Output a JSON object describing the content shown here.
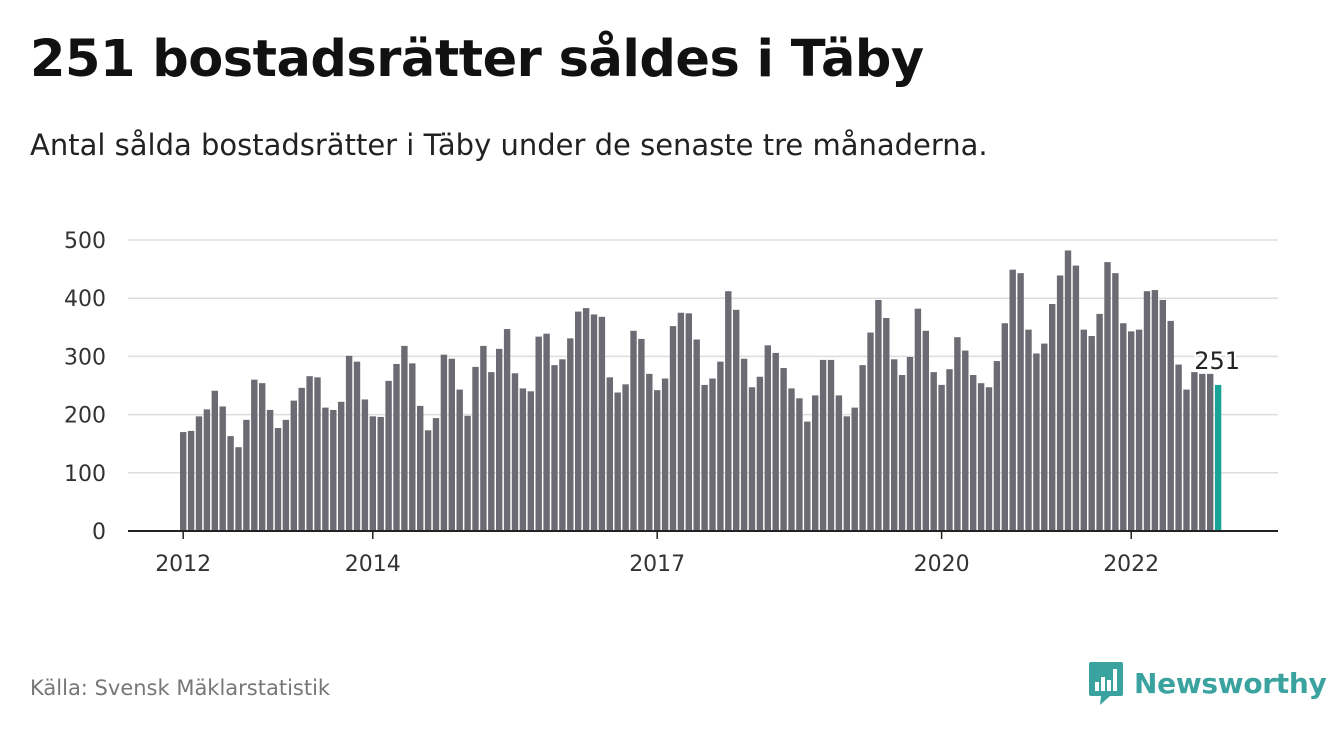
{
  "title": "251 bostadsrätter såldes i Täby",
  "subtitle": "Antal sålda bostadsrätter i Täby under de senaste tre månaderna.",
  "source": "Källa: Svensk Mäklarstatistik",
  "brand": {
    "name": "Newsworthy",
    "icon": "bar-chart-speech-bubble-icon",
    "color": "#3aa39f"
  },
  "colors": {
    "bar": "#6b6b73",
    "highlight": "#1aa399",
    "grid": "#dddddd",
    "axis": "#222222"
  },
  "chart_data": {
    "type": "bar",
    "ylim": [
      0,
      500
    ],
    "yticks": [
      0,
      100,
      200,
      300,
      400,
      500
    ],
    "xticks": [
      {
        "label": "2012",
        "index": 0
      },
      {
        "label": "2014",
        "index": 24
      },
      {
        "label": "2017",
        "index": 60
      },
      {
        "label": "2020",
        "index": 96
      },
      {
        "label": "2022",
        "index": 120
      }
    ],
    "grid": true,
    "highlight_label": "251",
    "values": [
      170,
      172,
      197,
      209,
      241,
      214,
      163,
      144,
      191,
      260,
      254,
      208,
      177,
      191,
      224,
      246,
      266,
      264,
      212,
      208,
      222,
      301,
      291,
      226,
      197,
      196,
      258,
      287,
      318,
      288,
      215,
      173,
      194,
      303,
      296,
      243,
      198,
      282,
      318,
      273,
      313,
      347,
      271,
      245,
      240,
      334,
      339,
      285,
      295,
      331,
      377,
      383,
      372,
      368,
      264,
      238,
      252,
      344,
      330,
      270,
      242,
      262,
      352,
      375,
      374,
      329,
      251,
      262,
      291,
      412,
      380,
      296,
      247,
      265,
      319,
      306,
      280,
      245,
      228,
      188,
      233,
      294,
      294,
      233,
      197,
      212,
      285,
      341,
      397,
      366,
      295,
      268,
      299,
      382,
      344,
      273,
      251,
      278,
      333,
      310,
      268,
      254,
      247,
      292,
      357,
      449,
      443,
      346,
      305,
      322,
      390,
      439,
      482,
      456,
      346,
      335,
      373,
      462,
      443,
      357,
      343,
      346,
      412,
      414,
      397,
      361,
      286,
      243,
      273,
      270,
      270,
      251
    ]
  }
}
